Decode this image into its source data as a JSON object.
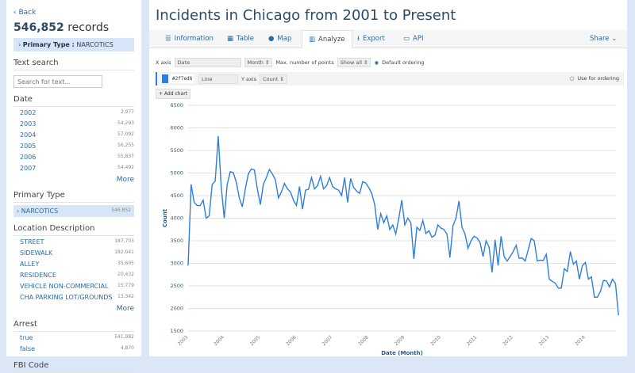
{
  "sidebar": {
    "back": "‹ Back",
    "records_count": "546,852",
    "records_label": " records",
    "filter_label": "Primary Type :",
    "filter_value": "NARCOTICS",
    "text_search": "Text search",
    "search_placeholder": "Search for text...",
    "date": {
      "title": "Date",
      "items": [
        {
          "label": "2002",
          "count": "2,977"
        },
        {
          "label": "2003",
          "count": "54,293"
        },
        {
          "label": "2004",
          "count": "57,092"
        },
        {
          "label": "2005",
          "count": "56,255"
        },
        {
          "label": "2006",
          "count": "55,837"
        },
        {
          "label": "2007",
          "count": "54,492"
        }
      ],
      "more": "More"
    },
    "primary_type": {
      "title": "Primary Type",
      "selected": "› NARCOTICS",
      "count": "546,852"
    },
    "location": {
      "title": "Location Description",
      "items": [
        {
          "label": "STREET",
          "count": "187,703"
        },
        {
          "label": "SIDEWALK",
          "count": "182,041"
        },
        {
          "label": "ALLEY",
          "count": "35,605"
        },
        {
          "label": "RESIDENCE",
          "count": "20,432"
        },
        {
          "label": "VEHICLE NON-COMMERCIAL",
          "count": "15,779"
        },
        {
          "label": "CHA PARKING LOT/GROUNDS",
          "count": "13,342"
        }
      ],
      "more": "More"
    },
    "arrest": {
      "title": "Arrest",
      "items": [
        {
          "label": "true",
          "count": "541,982"
        },
        {
          "label": "false",
          "count": "4,870"
        }
      ]
    },
    "fbi_code": "FBI Code"
  },
  "header": {
    "title": "Incidents in Chicago from 2001 to Present"
  },
  "tabs": [
    {
      "label": "Information",
      "icon": "list-icon"
    },
    {
      "label": "Table",
      "icon": "table-icon"
    },
    {
      "label": "Map",
      "icon": "globe-icon"
    },
    {
      "label": "Analyze",
      "icon": "bar-chart-icon"
    },
    {
      "label": "Export",
      "icon": "download-icon"
    },
    {
      "label": "API",
      "icon": "laptop-icon"
    }
  ],
  "share": "Share ⌄",
  "controls": {
    "x_axis_label": "X axis",
    "x_axis_value": "Date",
    "x_group": "Month ⇕",
    "max_points_label": "Max. number of points",
    "max_points_value": "Show all ⇕",
    "default_ordering": "Default ordering",
    "series_color": "#2f7ed8",
    "series_type": "Line",
    "y_axis_label": "Y axis",
    "y_axis_value": "Count ⇕",
    "use_for_ordering": "Use for ordering",
    "add_chart": "+ Add chart"
  },
  "chart_data": {
    "type": "line",
    "xlabel": "Date (Month)",
    "ylabel": "Count",
    "ylim": [
      1500,
      6500
    ],
    "yticks": [
      1500,
      2000,
      2500,
      3000,
      3500,
      4000,
      4500,
      5000,
      5500,
      6000,
      6500
    ],
    "xticks": [
      "2003",
      "2004",
      "2005",
      "2006",
      "2007",
      "2008",
      "2009",
      "2010",
      "2011",
      "2012",
      "2013",
      "2014"
    ],
    "start": "2003-01",
    "grid": "horizontal",
    "color": "#2f7ed8",
    "values": [
      2950,
      4750,
      4350,
      4280,
      4280,
      4400,
      4000,
      4050,
      4750,
      4820,
      5820,
      4700,
      4000,
      4750,
      5030,
      5010,
      4800,
      4450,
      4250,
      4650,
      4980,
      5090,
      5070,
      4650,
      4300,
      4750,
      4900,
      5080,
      4980,
      4850,
      4450,
      4580,
      4770,
      4650,
      4580,
      4400,
      4280,
      4700,
      4200,
      4620,
      4640,
      4900,
      4650,
      4720,
      4930,
      4650,
      4720,
      4900,
      4700,
      4650,
      4620,
      4500,
      4900,
      4350,
      4880,
      4680,
      4600,
      4550,
      4810,
      4780,
      4680,
      4550,
      4300,
      3750,
      4100,
      3900,
      4050,
      3750,
      3850,
      3650,
      4000,
      4400,
      3850,
      4000,
      3900,
      3100,
      3800,
      3730,
      3950,
      3660,
      3720,
      3580,
      3620,
      3850,
      3780,
      3750,
      3650,
      3130,
      3830,
      4000,
      4380,
      3800,
      3650,
      3330,
      3500,
      3600,
      3560,
      3460,
      3150,
      3500,
      3360,
      2800,
      3520,
      2950,
      3600,
      3150,
      3050,
      3150,
      3260,
      3400,
      3110,
      3120,
      3050,
      3300,
      3550,
      3500,
      3050,
      3070,
      3060,
      3200,
      2650,
      2600,
      2560,
      2450,
      2450,
      2880,
      2820,
      3260,
      2980,
      3050,
      2650,
      2950,
      3020,
      2650,
      2700,
      2250,
      2250,
      2380,
      2620,
      2610,
      2480,
      2650,
      2550,
      1850
    ]
  }
}
